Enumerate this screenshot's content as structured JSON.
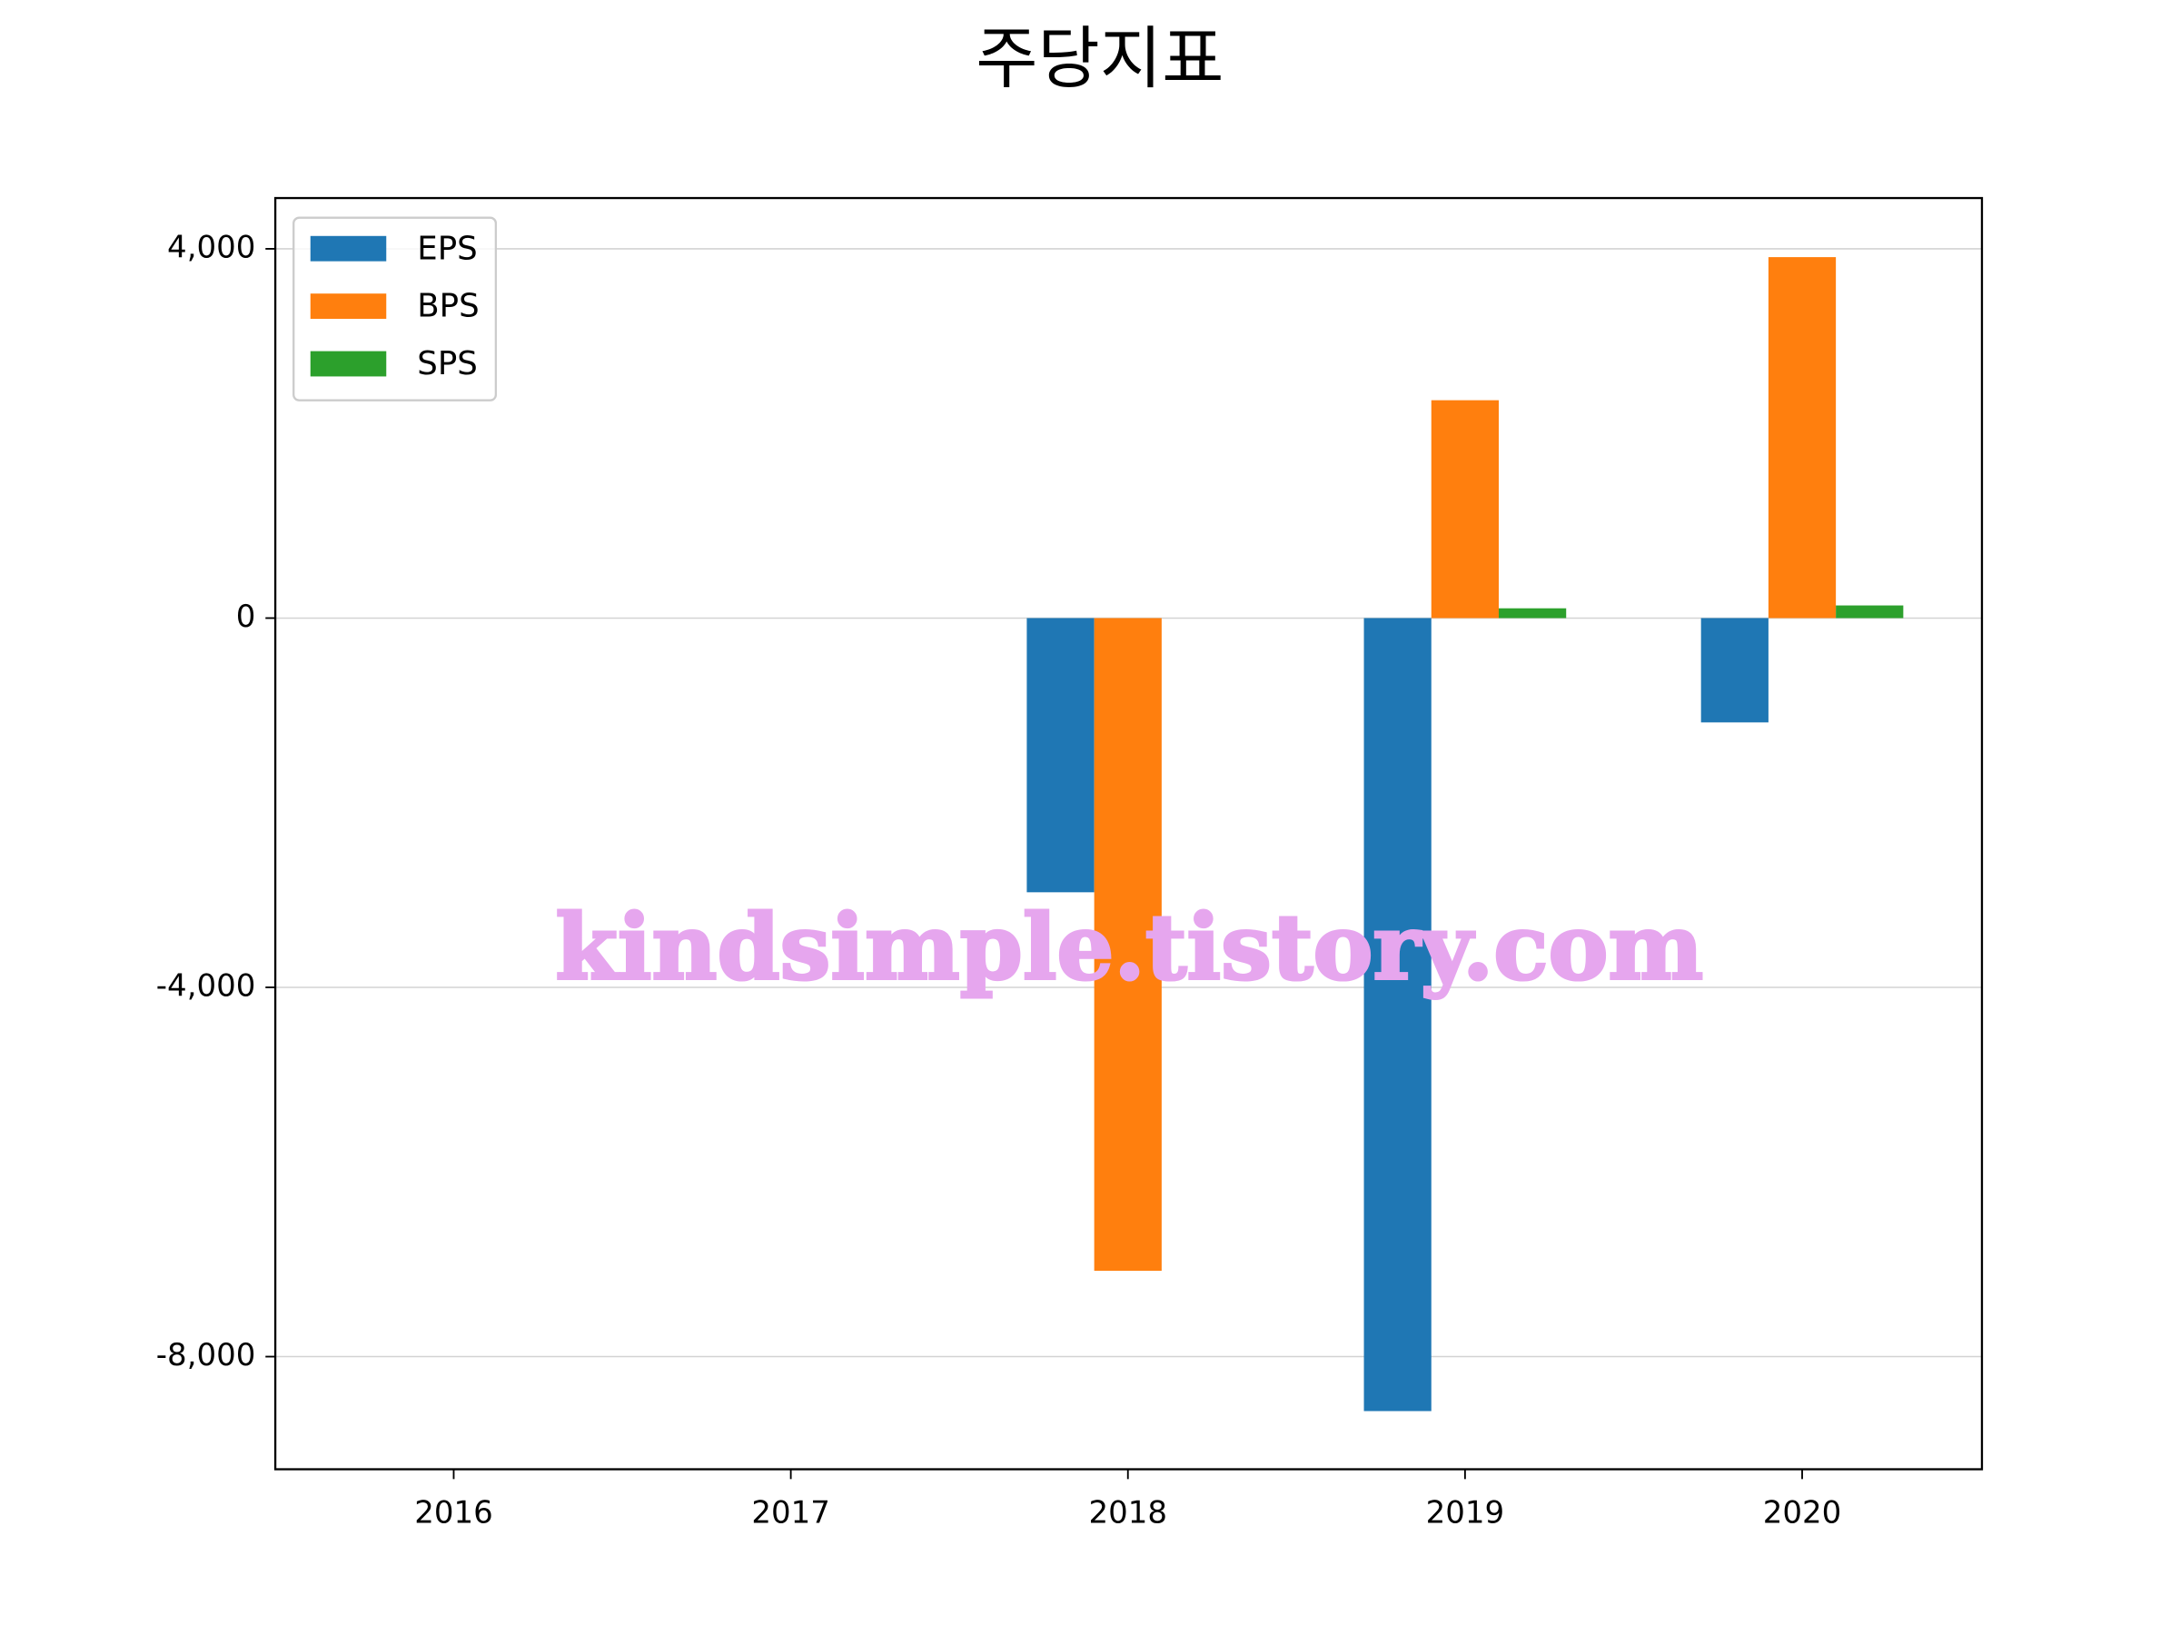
{
  "chart_data": {
    "type": "bar",
    "title": "주당지표",
    "categories": [
      "2016",
      "2017",
      "2018",
      "2019",
      "2020"
    ],
    "series": [
      {
        "name": "EPS",
        "color": "#1f77b4",
        "values": [
          null,
          null,
          -2970,
          -8590,
          -1130
        ]
      },
      {
        "name": "BPS",
        "color": "#ff7f0e",
        "values": [
          null,
          null,
          -7070,
          2360,
          3910
        ]
      },
      {
        "name": "SPS",
        "color": "#2ca02c",
        "values": [
          null,
          null,
          null,
          106,
          137
        ]
      }
    ],
    "ylim": [
      -9220,
      4550
    ],
    "yticks": [
      {
        "value": 4000,
        "label": "4,000"
      },
      0,
      {
        "value": -4000,
        "label": "-4,000"
      },
      {
        "value": -8000,
        "label": "-8,000"
      }
    ],
    "grid": true,
    "legend": "upper left",
    "watermark": "kindsimple.tistory.com"
  }
}
